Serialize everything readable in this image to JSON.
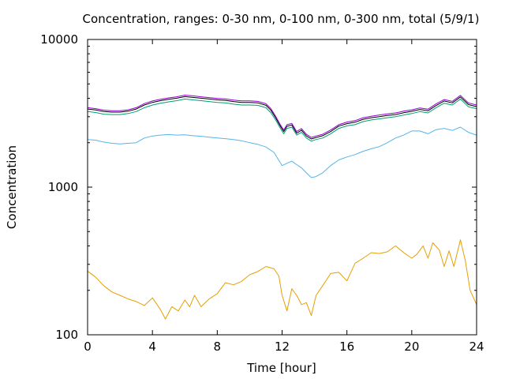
{
  "chart_data": {
    "type": "line",
    "title": "Concentration, ranges: 0-30 nm, 0-100 nm, 0-300 nm, total (5/9/1)",
    "xlabel": "Time [hour]",
    "ylabel": "Concentration",
    "xlim": [
      0,
      24
    ],
    "ylim": [
      100,
      10000
    ],
    "yscale": "log",
    "xticks": [
      0,
      4,
      8,
      12,
      16,
      20,
      24
    ],
    "xtick_labels": [
      "0",
      "4",
      "8",
      "12",
      "16",
      "20",
      "24"
    ],
    "yticks": [
      100,
      1000,
      10000
    ],
    "ytick_labels": [
      "100",
      "1000",
      "10000"
    ],
    "grid": false,
    "legend": "none",
    "series": [
      {
        "color": "#e69f00",
        "x": [
          0,
          0.5,
          1,
          1.5,
          2,
          2.5,
          3,
          3.5,
          4,
          4.5,
          4.8,
          5.2,
          5.6,
          6,
          6.3,
          6.6,
          7,
          7.5,
          8,
          8.5,
          9,
          9.5,
          10,
          10.5,
          11,
          11.5,
          11.8,
          12,
          12.3,
          12.6,
          12.9,
          13.2,
          13.5,
          13.8,
          14.1,
          14.5,
          15,
          15.5,
          16,
          16.5,
          17,
          17.5,
          18,
          18.5,
          19,
          19.5,
          20,
          20.3,
          20.7,
          21,
          21.3,
          21.7,
          22,
          22.3,
          22.6,
          23,
          23.3,
          23.6,
          24
        ],
        "y": [
          270,
          245,
          215,
          195,
          185,
          175,
          168,
          158,
          178,
          148,
          128,
          155,
          145,
          172,
          155,
          185,
          155,
          175,
          190,
          225,
          218,
          230,
          255,
          268,
          290,
          280,
          250,
          185,
          145,
          205,
          185,
          160,
          165,
          135,
          185,
          215,
          260,
          265,
          232,
          305,
          330,
          360,
          355,
          365,
          400,
          360,
          330,
          350,
          400,
          330,
          420,
          375,
          290,
          370,
          290,
          440,
          320,
          200,
          160
        ]
      },
      {
        "color": "#56b4e9",
        "x": [
          0,
          0.5,
          1,
          1.5,
          2,
          2.5,
          3,
          3.5,
          4,
          4.5,
          5,
          5.5,
          6,
          6.5,
          7,
          7.5,
          8,
          8.5,
          9,
          9.5,
          10,
          10.5,
          11,
          11.5,
          12,
          12.3,
          12.6,
          12.9,
          13.2,
          13.5,
          13.8,
          14.1,
          14.5,
          15,
          15.5,
          16,
          16.5,
          17,
          17.5,
          18,
          18.5,
          19,
          19.5,
          20,
          20.5,
          21,
          21.5,
          22,
          22.5,
          23,
          23.5,
          24
        ],
        "y": [
          2100,
          2080,
          2020,
          1980,
          1960,
          1980,
          2000,
          2150,
          2220,
          2250,
          2270,
          2250,
          2260,
          2230,
          2210,
          2180,
          2150,
          2130,
          2100,
          2060,
          2000,
          1950,
          1870,
          1720,
          1400,
          1450,
          1500,
          1420,
          1350,
          1250,
          1160,
          1180,
          1250,
          1400,
          1530,
          1600,
          1660,
          1750,
          1820,
          1880,
          2000,
          2150,
          2250,
          2400,
          2400,
          2300,
          2450,
          2500,
          2420,
          2550,
          2350,
          2250
        ]
      },
      {
        "color": "#009e73",
        "x": [
          0,
          0.5,
          1,
          1.5,
          2,
          2.5,
          3,
          3.5,
          4,
          4.5,
          5,
          5.5,
          6,
          6.5,
          7,
          7.5,
          8,
          8.5,
          9,
          9.5,
          10,
          10.5,
          11,
          11.3,
          11.6,
          11.9,
          12.1,
          12.3,
          12.6,
          12.9,
          13.2,
          13.5,
          13.8,
          14.1,
          14.5,
          15,
          15.5,
          16,
          16.5,
          17,
          17.5,
          18,
          18.5,
          19,
          19.5,
          20,
          20.5,
          21,
          21.5,
          22,
          22.5,
          23,
          23.5,
          24
        ],
        "y": [
          3250,
          3200,
          3120,
          3100,
          3100,
          3150,
          3250,
          3450,
          3600,
          3700,
          3780,
          3850,
          3950,
          3900,
          3850,
          3800,
          3750,
          3720,
          3650,
          3600,
          3600,
          3580,
          3450,
          3200,
          2850,
          2500,
          2300,
          2500,
          2550,
          2250,
          2350,
          2150,
          2050,
          2100,
          2150,
          2300,
          2500,
          2600,
          2650,
          2780,
          2850,
          2900,
          2950,
          3000,
          3080,
          3150,
          3250,
          3180,
          3450,
          3700,
          3600,
          3950,
          3500,
          3400
        ]
      },
      {
        "color": "#000000",
        "x": [
          0,
          0.5,
          1,
          1.5,
          2,
          2.5,
          3,
          3.5,
          4,
          4.5,
          5,
          5.5,
          6,
          6.5,
          7,
          7.5,
          8,
          8.5,
          9,
          9.5,
          10,
          10.5,
          11,
          11.3,
          11.6,
          11.9,
          12.1,
          12.3,
          12.6,
          12.9,
          13.2,
          13.5,
          13.8,
          14.1,
          14.5,
          15,
          15.5,
          16,
          16.5,
          17,
          17.5,
          18,
          18.5,
          19,
          19.5,
          20,
          20.5,
          21,
          21.5,
          22,
          22.5,
          23,
          23.5,
          24
        ],
        "y": [
          3380,
          3330,
          3250,
          3220,
          3220,
          3270,
          3380,
          3600,
          3750,
          3850,
          3930,
          4000,
          4100,
          4050,
          4000,
          3950,
          3900,
          3870,
          3800,
          3750,
          3750,
          3720,
          3580,
          3330,
          2950,
          2580,
          2380,
          2580,
          2640,
          2320,
          2430,
          2220,
          2120,
          2170,
          2230,
          2380,
          2590,
          2690,
          2750,
          2880,
          2950,
          3000,
          3060,
          3100,
          3190,
          3260,
          3360,
          3290,
          3570,
          3830,
          3720,
          4080,
          3620,
          3510
        ]
      },
      {
        "color": "#9400d3",
        "x": [
          0,
          0.5,
          1,
          1.5,
          2,
          2.5,
          3,
          3.5,
          4,
          4.5,
          5,
          5.5,
          6,
          6.5,
          7,
          7.5,
          8,
          8.5,
          9,
          9.5,
          10,
          10.5,
          11,
          11.3,
          11.6,
          11.9,
          12.1,
          12.3,
          12.6,
          12.9,
          13.2,
          13.5,
          13.8,
          14.1,
          14.5,
          15,
          15.5,
          16,
          16.5,
          17,
          17.5,
          18,
          18.5,
          19,
          19.5,
          20,
          20.5,
          21,
          21.5,
          22,
          22.5,
          23,
          23.5,
          24
        ],
        "y": [
          3450,
          3400,
          3320,
          3290,
          3290,
          3340,
          3450,
          3680,
          3830,
          3930,
          4020,
          4090,
          4200,
          4150,
          4090,
          4040,
          3990,
          3960,
          3890,
          3840,
          3840,
          3810,
          3670,
          3410,
          3020,
          2640,
          2440,
          2650,
          2700,
          2380,
          2490,
          2280,
          2170,
          2220,
          2280,
          2440,
          2650,
          2760,
          2820,
          2950,
          3020,
          3080,
          3130,
          3180,
          3270,
          3340,
          3440,
          3370,
          3660,
          3920,
          3810,
          4180,
          3710,
          3600
        ]
      }
    ]
  }
}
